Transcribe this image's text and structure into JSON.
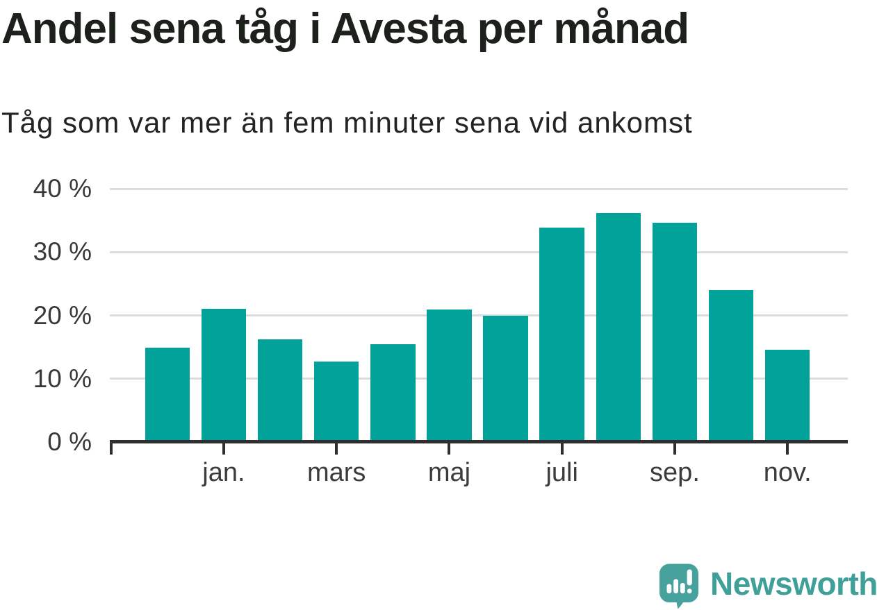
{
  "title": "Andel sena tåg i Avesta per månad",
  "subtitle": "Tåg som var mer än fem minuter sena vid ankomst",
  "footer": {
    "brand": "Newsworthy",
    "logo_icon": "bar-chart-exclamation-speech-bubble-icon"
  },
  "colors": {
    "bar": "#00a29a",
    "grid": "#dcdcdc",
    "axis": "#2f2f2f",
    "tick_label": "#3c3c3c",
    "title_text": "#1c211c",
    "logo_bubble": "#47a29d",
    "wordmark": "#3f9f99",
    "background": "#ffffff"
  },
  "chart_data": {
    "type": "bar",
    "title": "Andel sena tåg i Avesta per månad",
    "subtitle": "Tåg som var mer än fem minuter sena vid ankomst",
    "unit": "percent",
    "categories": [
      "",
      "jan.",
      "",
      "mars",
      "",
      "maj",
      "",
      "juli",
      "",
      "sep.",
      "",
      "nov."
    ],
    "values": [
      14.9,
      21.0,
      16.2,
      12.7,
      15.4,
      20.9,
      20.0,
      33.9,
      36.2,
      34.6,
      24.0,
      14.6
    ],
    "xlabel": "",
    "ylabel": "",
    "ylim": [
      0,
      40
    ],
    "yticks": [
      0,
      10,
      20,
      30,
      40
    ],
    "ytick_labels": [
      "0 %",
      "10 %",
      "20 %",
      "30 %",
      "40 %"
    ],
    "xtick_bar_indices": [
      1,
      3,
      5,
      7,
      9,
      11
    ],
    "xtick_labels": [
      "jan.",
      "mars",
      "maj",
      "juli",
      "sep.",
      "nov."
    ],
    "grid": true,
    "legend": false,
    "bar_color": "#00a29a"
  }
}
